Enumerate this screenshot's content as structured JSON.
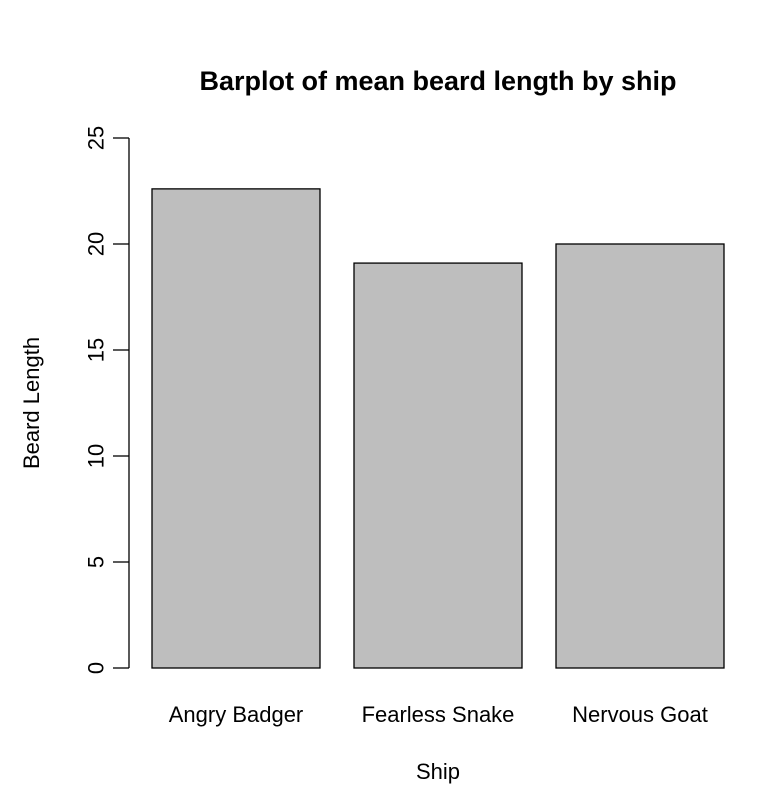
{
  "chart_data": {
    "type": "bar",
    "title": "Barplot of mean beard length by ship",
    "xlabel": "Ship",
    "ylabel": "Beard Length",
    "categories": [
      "Angry Badger",
      "Fearless Snake",
      "Nervous Goat"
    ],
    "values": [
      22.6,
      19.1,
      20.0
    ],
    "ylim": [
      0,
      25
    ],
    "yticks": [
      "0",
      "5",
      "10",
      "15",
      "20",
      "25"
    ],
    "grid": false,
    "legend": "none",
    "bar_color": "#bebebe",
    "border_color": "#000000"
  }
}
